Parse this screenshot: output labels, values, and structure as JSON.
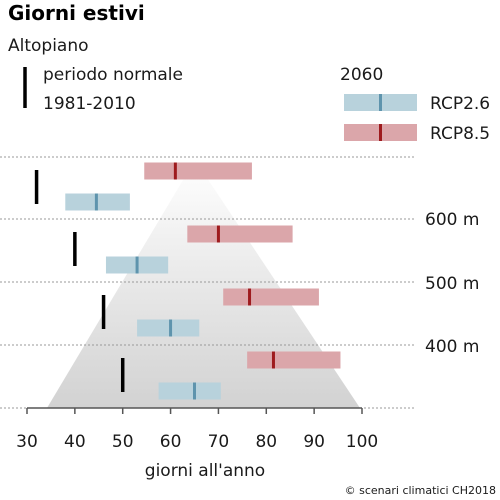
{
  "title": "Giorni estivi",
  "subtitle": "Altopiano",
  "legend": {
    "normal_label_line1": "periodo normale",
    "normal_label_line2": "1981-2010",
    "future_title": "2060",
    "rcp26_label": "RCP2.6",
    "rcp85_label": "RCP8.5"
  },
  "xlabel": "giorni all'anno",
  "credit": "© scenari climatici CH2018",
  "colors": {
    "rcp26_band": "#b8d2dc",
    "rcp26_median": "#5e94ad",
    "rcp85_band": "#dba6aa",
    "rcp85_median": "#9e1b1e",
    "normal": "#000000",
    "mountain": "#d2d2d2",
    "grid": "#999999"
  },
  "chart_data": {
    "type": "range",
    "title": "Giorni estivi",
    "subtitle": "Altopiano",
    "xlabel": "giorni all'anno",
    "xlim": [
      30,
      100
    ],
    "x_ticks": [
      30,
      40,
      50,
      60,
      70,
      80,
      90,
      100
    ],
    "elevation_ticks": [
      "600 m",
      "500 m",
      "400 m"
    ],
    "normal_period": [
      32,
      40,
      46,
      50
    ],
    "rcp26": [
      {
        "low": 38,
        "median": 44.5,
        "high": 51.5
      },
      {
        "low": 46.5,
        "median": 53,
        "high": 59.5
      },
      {
        "low": 53,
        "median": 60,
        "high": 66
      },
      {
        "low": 57.5,
        "median": 65,
        "high": 70.5
      }
    ],
    "rcp85": [
      {
        "low": 54.5,
        "median": 61,
        "high": 77
      },
      {
        "low": 63.5,
        "median": 70,
        "high": 85.5
      },
      {
        "low": 71,
        "median": 76.5,
        "high": 91
      },
      {
        "low": 76,
        "median": 81.5,
        "high": 95.5
      }
    ]
  }
}
